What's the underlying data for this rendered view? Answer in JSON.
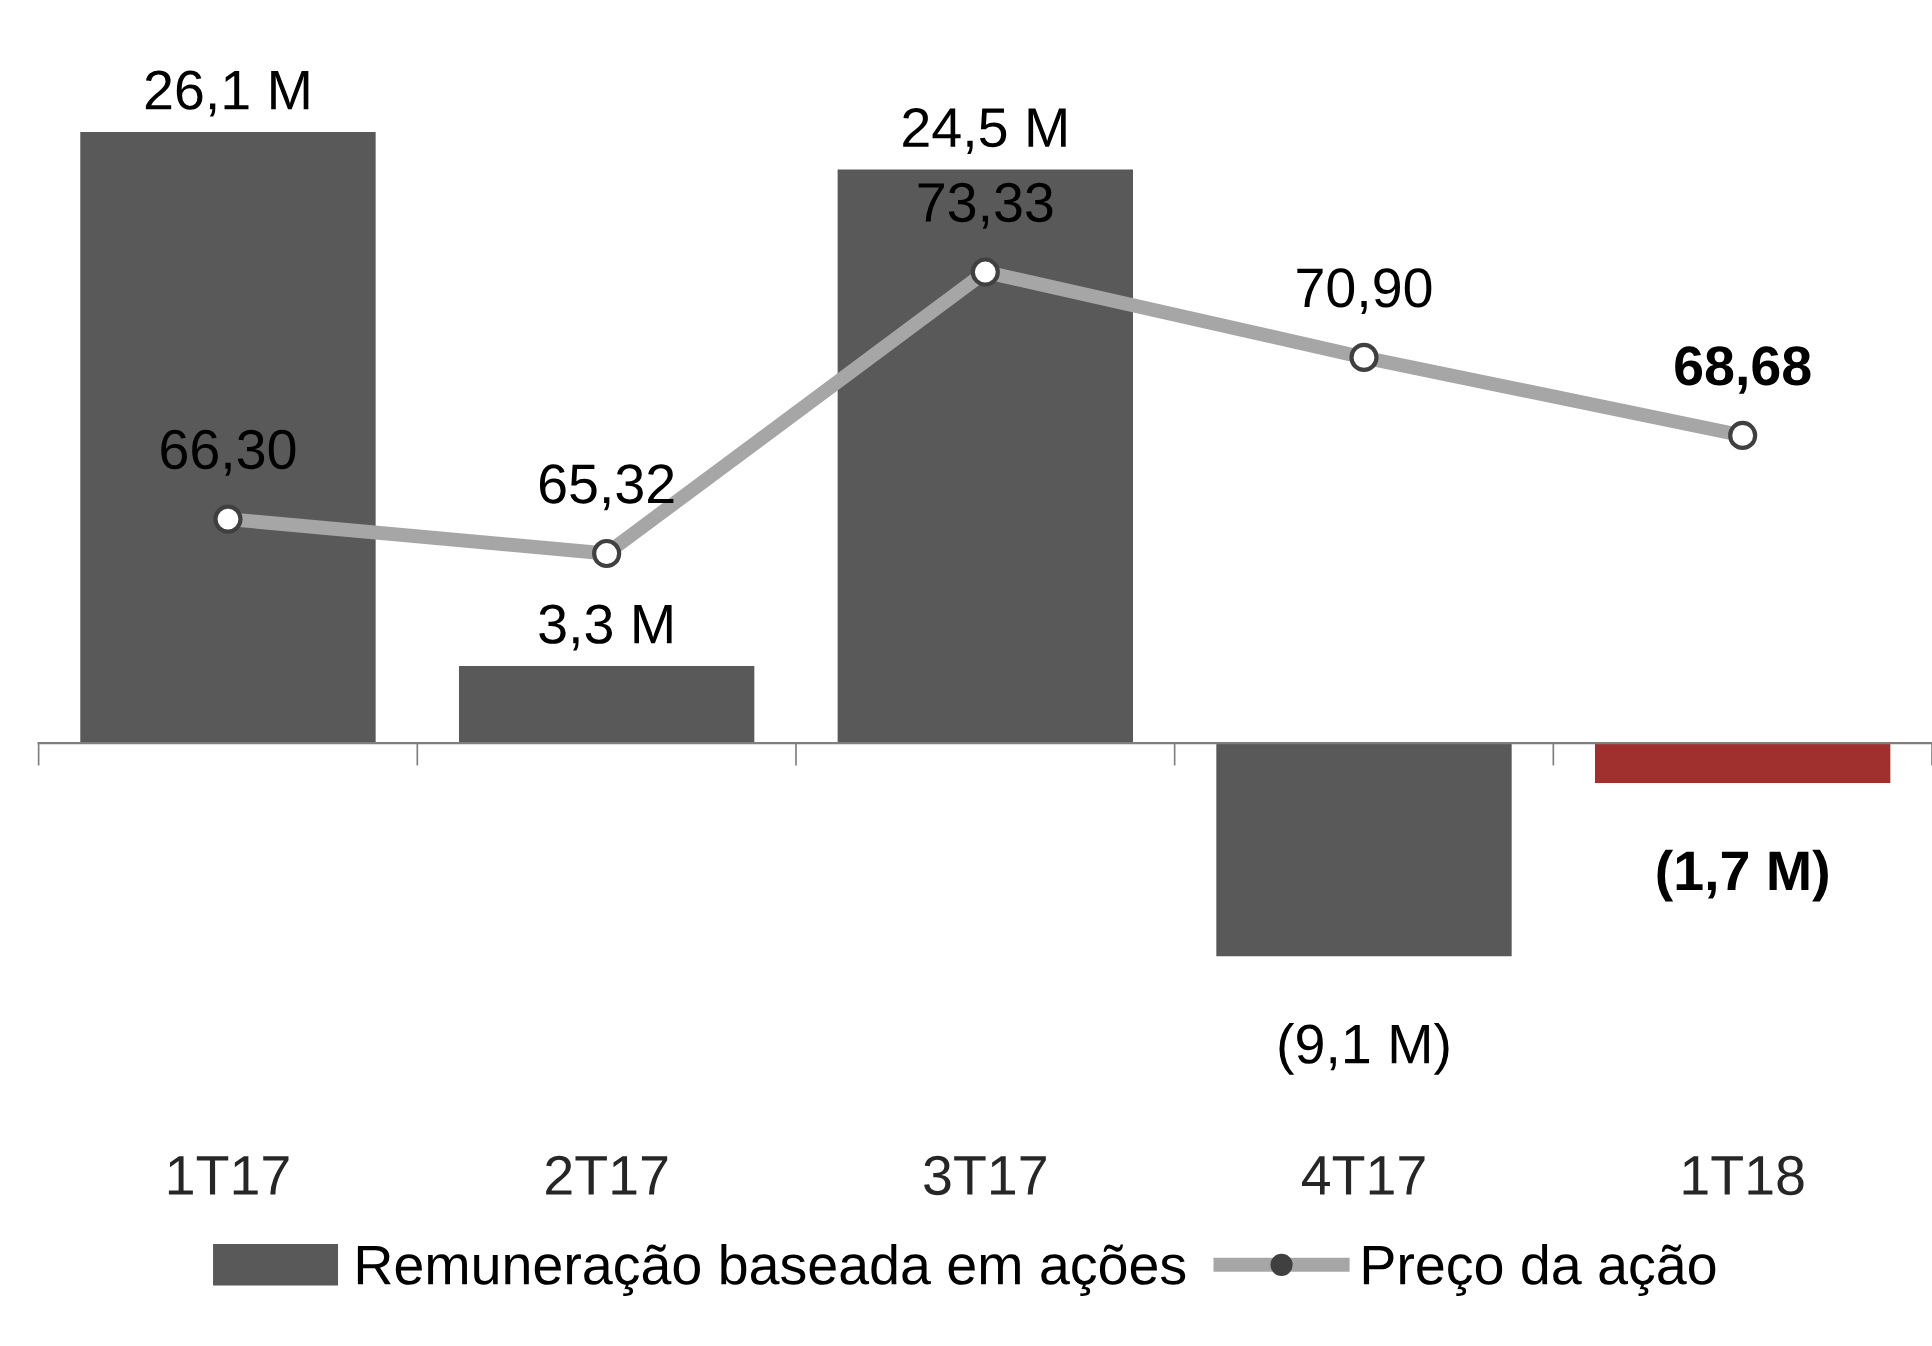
{
  "chart_data": {
    "type": "bar",
    "categories": [
      "1T17",
      "2T17",
      "3T17",
      "4T17",
      "1T18"
    ],
    "series": [
      {
        "name": "Remuneração baseada em ações",
        "colors": [
          "#595959",
          "#595959",
          "#595959",
          "#595959",
          "#a0302e"
        ],
        "values": [
          26.1,
          3.3,
          24.5,
          -9.1,
          -1.7
        ],
        "value_labels": [
          "26,1 M",
          "3,3 M",
          "24,5 M",
          "(9,1 M)",
          "(1,7 M)"
        ]
      },
      {
        "name": "Preço da ação",
        "type": "line",
        "axis": "y2",
        "color": "#a6a6a6",
        "values": [
          66.3,
          65.32,
          73.33,
          70.9,
          68.68
        ],
        "value_labels": [
          "66,30",
          "65,32",
          "73,33",
          "70,90",
          "68,68"
        ]
      }
    ],
    "legend": "bottom",
    "marker": "circle",
    "tick_labels": "x",
    "grid": false
  }
}
